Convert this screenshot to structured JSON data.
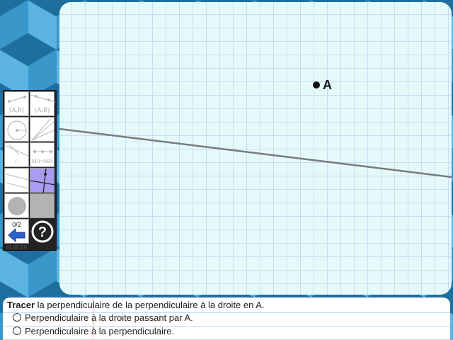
{
  "canvas": {
    "point": {
      "label": "A"
    }
  },
  "toolbar": {
    "tools": [
      {
        "name": "segment-tool",
        "label": "[A,B]"
      },
      {
        "name": "ray-tool",
        "label": "(A,B)"
      },
      {
        "name": "circle-tool",
        "label": ""
      },
      {
        "name": "lines-tool",
        "label": ""
      },
      {
        "name": "intersection-tool",
        "label": "∩"
      },
      {
        "name": "equal-length-tool",
        "label": "MA=MB"
      },
      {
        "name": "parallel-tool",
        "label": ""
      },
      {
        "name": "perpendicular-tool",
        "label": ""
      },
      {
        "name": "fill-circle-tool",
        "label": ""
      },
      {
        "name": "gray-square-tool",
        "label": ""
      }
    ],
    "counter": "0/2",
    "version": "v1.02 3.0"
  },
  "instructions": {
    "verb": "Tracer",
    "text": " la perpendiculaire de la perpendiculaire à la droite en A.",
    "options": [
      "Perpendiculaire à la droite passant par A.",
      "Perpendiculaire à la perpendiculaire."
    ]
  },
  "colors": {
    "canvas_bg": "#e4fafa",
    "grid": "#c9dcf4",
    "selected_tool": "#a99cf2",
    "line": "#7a7a7a"
  }
}
